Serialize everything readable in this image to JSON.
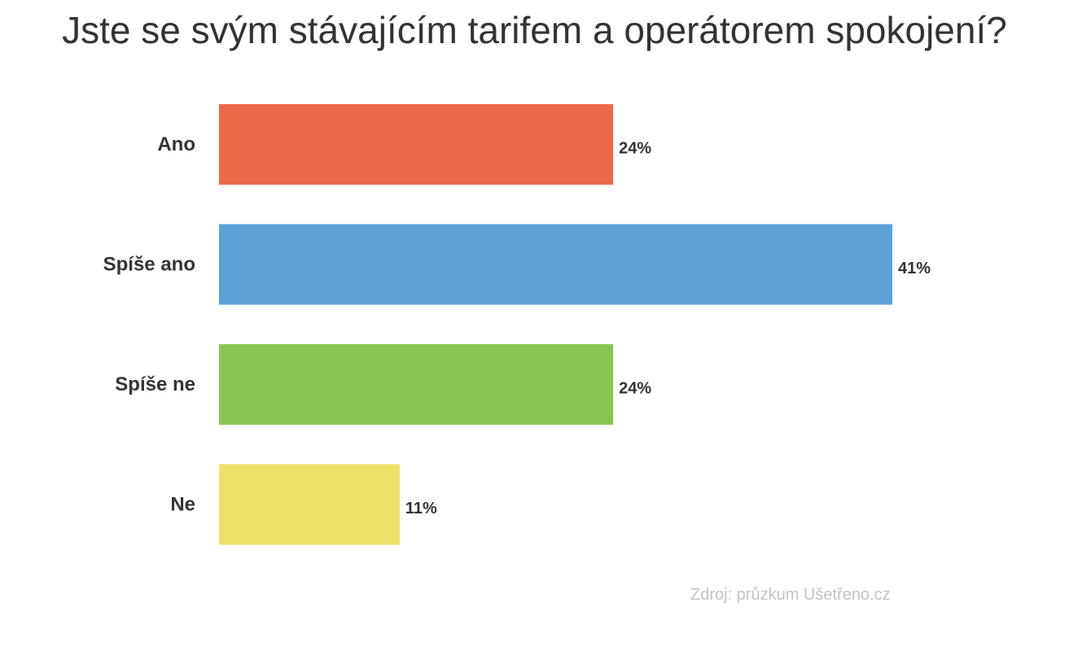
{
  "chart_data": {
    "type": "bar",
    "orientation": "horizontal",
    "title": "Jste se svým stávajícím tarifem a operátorem spokojení?",
    "categories": [
      "Ano",
      "Spíše ano",
      "Spíše ne",
      "Ne"
    ],
    "values": [
      24,
      41,
      24,
      11
    ],
    "value_labels": [
      "24%",
      "41%",
      "24%",
      "11%"
    ],
    "unit": "%",
    "colors": [
      "#e9694a",
      "#5ca1d8",
      "#87c653",
      "#eee06a"
    ],
    "xlim": [
      0,
      41
    ],
    "grid": false,
    "legend": "none",
    "source": "Zdroj: průzkum Ušetřeno.cz"
  }
}
